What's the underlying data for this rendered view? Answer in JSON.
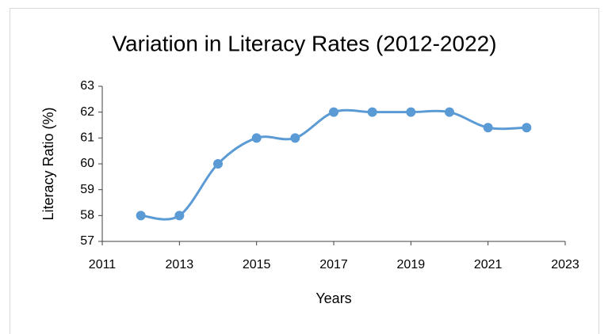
{
  "chart_data": {
    "type": "line",
    "title": "Variation in Literacy Rates (2012-2022)",
    "x_label": "Years",
    "y_label": "Literacy Ratio (%)",
    "x": [
      2012,
      2013,
      2014,
      2015,
      2016,
      2017,
      2018,
      2019,
      2020,
      2021,
      2022
    ],
    "series": [
      {
        "color": "#5b9bd5",
        "values": [
          58,
          58,
          60,
          61,
          61,
          62,
          62,
          62,
          62,
          61.4,
          61.4
        ]
      }
    ],
    "xlim": [
      2011,
      2023
    ],
    "xticks": [
      2011,
      2013,
      2015,
      2017,
      2019,
      2021,
      2023
    ],
    "ylim": [
      57,
      63
    ],
    "yticks": [
      57,
      58,
      59,
      60,
      61,
      62,
      63
    ],
    "grid": false,
    "smooth": true
  }
}
